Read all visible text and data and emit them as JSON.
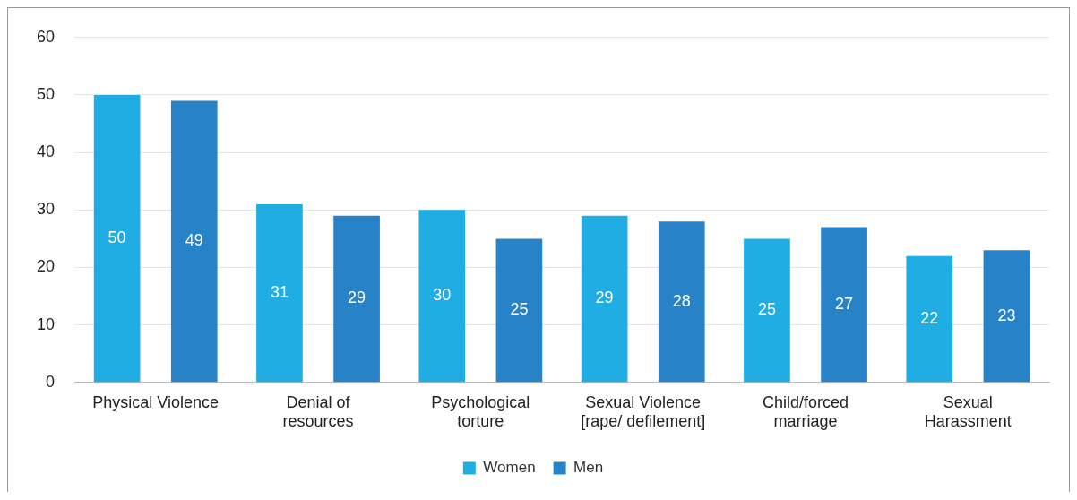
{
  "chart_data": {
    "type": "bar",
    "categories": [
      "Physical Violence",
      "Denial of resources",
      "Psychological torture",
      "Sexual Violence [rape/ defilement]",
      "Child/forced marriage",
      "Sexual Harassment"
    ],
    "series": [
      {
        "name": "Women",
        "color": "#1fade4",
        "values": [
          50,
          31,
          30,
          29,
          25,
          22
        ]
      },
      {
        "name": "Men",
        "color": "#2882c8",
        "values": [
          49,
          29,
          25,
          28,
          27,
          23
        ]
      }
    ],
    "ylim": [
      0,
      60
    ],
    "yticks": [
      0,
      10,
      20,
      30,
      40,
      50,
      60
    ],
    "grid": "y",
    "legend": "bottom",
    "data_labels": true
  }
}
